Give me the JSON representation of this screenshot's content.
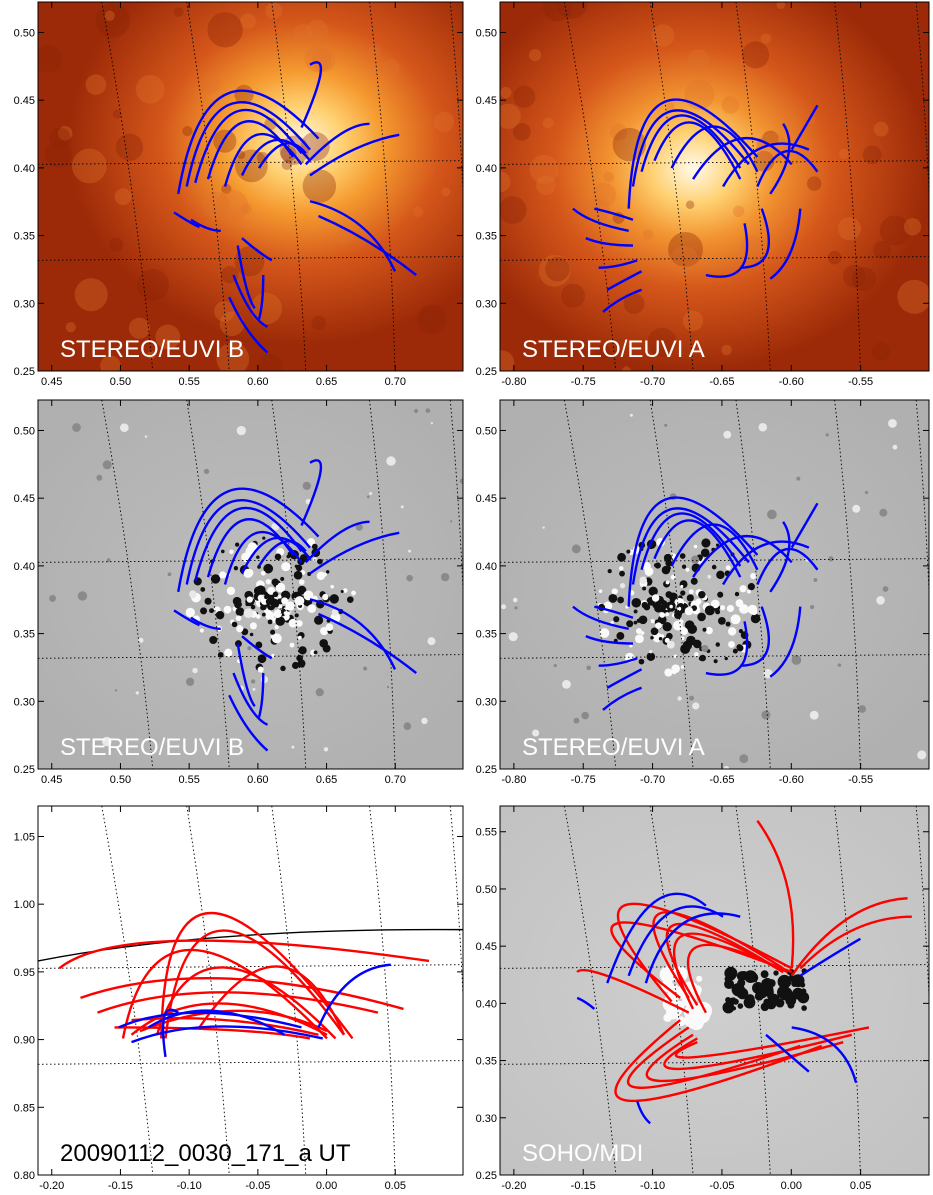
{
  "panels": [
    {
      "id": "euvi-b-top",
      "label": "STEREO/EUVI B",
      "label_color": "#ffffff",
      "background": "euvi",
      "xlim": [
        0.45,
        0.74
      ],
      "ylim": [
        0.25,
        0.545
      ],
      "xticks": [
        "0.45",
        "0.50",
        "0.55",
        "0.60",
        "0.65",
        "0.70"
      ],
      "yticks": [
        "0.25",
        "0.30",
        "0.35",
        "0.40",
        "0.45",
        "0.50"
      ]
    },
    {
      "id": "euvi-a-top",
      "label": "STEREO/EUVI A",
      "label_color": "#ffffff",
      "background": "euvi",
      "xlim": [
        -0.83,
        -0.545
      ],
      "ylim": [
        0.25,
        0.545
      ],
      "xticks": [
        "-0.80",
        "-0.75",
        "-0.70",
        "-0.65",
        "-0.60",
        "-0.55"
      ],
      "yticks": [
        "0.25",
        "0.30",
        "0.35",
        "0.40",
        "0.45",
        "0.50"
      ]
    },
    {
      "id": "euvi-b-diff",
      "label": "STEREO/EUVI B",
      "label_color": "#ffffff",
      "background": "diff",
      "xlim": [
        0.45,
        0.74
      ],
      "ylim": [
        0.25,
        0.545
      ],
      "xticks": [
        "0.45",
        "0.50",
        "0.55",
        "0.60",
        "0.65",
        "0.70"
      ],
      "yticks": [
        "0.25",
        "0.30",
        "0.35",
        "0.40",
        "0.45",
        "0.50"
      ]
    },
    {
      "id": "euvi-a-diff",
      "label": "STEREO/EUVI A",
      "label_color": "#ffffff",
      "background": "diff",
      "xlim": [
        -0.83,
        -0.545
      ],
      "ylim": [
        0.25,
        0.545
      ],
      "xticks": [
        "-0.80",
        "-0.75",
        "-0.70",
        "-0.65",
        "-0.60",
        "-0.55"
      ],
      "yticks": [
        "0.25",
        "0.30",
        "0.35",
        "0.40",
        "0.45",
        "0.50"
      ]
    },
    {
      "id": "model-side",
      "label": "20090112_0030_171_a UT",
      "label_color": "#000000",
      "background": "white",
      "xlim": [
        -0.21,
        0.08
      ],
      "ylim": [
        0.8,
        1.11
      ],
      "xticks": [
        "-0.20",
        "-0.15",
        "-0.10",
        "-0.05",
        "0.00",
        "0.05"
      ],
      "yticks": [
        "0.80",
        "0.85",
        "0.90",
        "0.95",
        "1.00",
        "1.05"
      ]
    },
    {
      "id": "soho-mdi",
      "label": "SOHO/MDI",
      "label_color": "#ffffff",
      "background": "mdi",
      "xlim": [
        -0.22,
        0.075
      ],
      "ylim": [
        0.25,
        0.55
      ],
      "xticks": [
        "-0.20",
        "-0.15",
        "-0.10",
        "-0.05",
        "0.00",
        "0.05"
      ],
      "yticks": [
        "0.25",
        "0.30",
        "0.35",
        "0.40",
        "0.45",
        "0.50",
        "0.55"
      ]
    }
  ],
  "colors": {
    "observed_loops": "#0000ff",
    "model_loops": "#ff0000",
    "limb": "#000000",
    "grid": "#000000"
  },
  "chart_data": [
    {
      "type": "scatter",
      "panel": "euvi-b-top",
      "title": "STEREO/EUVI B",
      "series": [
        {
          "name": "",
          "values": []
        }
      ]
    },
    {
      "type": "scatter",
      "panel": "euvi-a-top",
      "title": "STEREO/EUVI A",
      "series": [
        {
          "name": "",
          "values": []
        }
      ]
    },
    {
      "type": "scatter",
      "panel": "euvi-b-diff",
      "title": "STEREO/EUVI B",
      "series": [
        {
          "name": "",
          "values": []
        }
      ]
    },
    {
      "type": "scatter",
      "panel": "euvi-a-diff",
      "title": "STEREO/EUVI A",
      "series": [
        {
          "name": "",
          "values": []
        }
      ]
    },
    {
      "type": "line",
      "panel": "model-side",
      "title": "20090112_0030_171_a UT",
      "limb_y_at_x": [
        [
          -0.21,
          0.975
        ],
        [
          -0.1,
          1.0
        ],
        [
          0.0,
          1.006
        ],
        [
          0.08,
          1.003
        ]
      ]
    },
    {
      "type": "line",
      "panel": "soho-mdi",
      "title": "SOHO/MDI"
    }
  ]
}
